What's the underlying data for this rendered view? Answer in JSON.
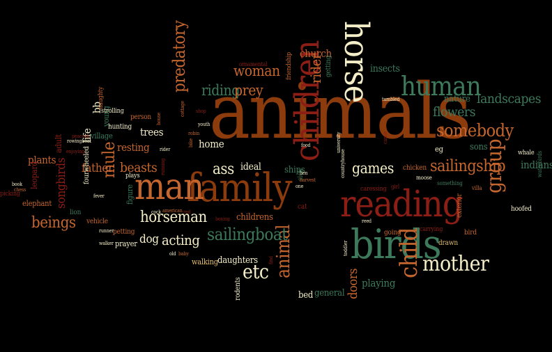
{
  "palette": {
    "background": "#000000",
    "brown": "#8c3b0c",
    "orange": "#c5662e",
    "green": "#3d7a5c",
    "red": "#8d1e16",
    "cream": "#f4eec8",
    "yellow": "#e0bd6b"
  },
  "words": [
    {
      "text": "animals",
      "color": "brown"
    },
    {
      "text": "family",
      "color": "brown"
    },
    {
      "text": "man",
      "color": "orange"
    },
    {
      "text": "reading",
      "color": "red"
    },
    {
      "text": "birds",
      "color": "green"
    },
    {
      "text": "horse",
      "color": "cream"
    },
    {
      "text": "children",
      "color": "red"
    },
    {
      "text": "human",
      "color": "green"
    },
    {
      "text": "child",
      "color": "orange"
    },
    {
      "text": "mother",
      "color": "cream"
    },
    {
      "text": "sailingship",
      "color": "orange"
    },
    {
      "text": "somebody",
      "color": "orange"
    },
    {
      "text": "group",
      "color": "orange"
    },
    {
      "text": "animal",
      "color": "orange"
    },
    {
      "text": "sailingboat",
      "color": "green"
    },
    {
      "text": "horseman",
      "color": "cream"
    },
    {
      "text": "predatory",
      "color": "orange"
    },
    {
      "text": "mule",
      "color": "orange"
    },
    {
      "text": "etc",
      "color": "cream"
    },
    {
      "text": "games",
      "color": "cream"
    },
    {
      "text": "woman",
      "color": "orange"
    },
    {
      "text": "riding",
      "color": "green"
    },
    {
      "text": "prey",
      "color": "orange"
    },
    {
      "text": "rider",
      "color": "orange"
    },
    {
      "text": "beings",
      "color": "orange"
    },
    {
      "text": "beasts",
      "color": "orange"
    },
    {
      "text": "acting",
      "color": "cream"
    },
    {
      "text": "ass",
      "color": "cream"
    },
    {
      "text": "landscapes",
      "color": "green"
    },
    {
      "text": "flowers",
      "color": "green"
    },
    {
      "text": "insects",
      "color": "green"
    },
    {
      "text": "church",
      "color": "orange"
    },
    {
      "text": "songbirds",
      "color": "red"
    },
    {
      "text": "father",
      "color": "orange"
    },
    {
      "text": "dog",
      "color": "cream"
    },
    {
      "text": "resting",
      "color": "orange"
    },
    {
      "text": "trees",
      "color": "cream"
    },
    {
      "text": "indians",
      "color": "green"
    },
    {
      "text": "doors",
      "color": "orange"
    },
    {
      "text": "playing",
      "color": "green"
    },
    {
      "text": "plants",
      "color": "orange"
    },
    {
      "text": "home",
      "color": "cream"
    },
    {
      "text": "bb",
      "color": "cream"
    },
    {
      "text": "life",
      "color": "cream"
    },
    {
      "text": "sons",
      "color": "green"
    },
    {
      "text": "ideal",
      "color": "cream"
    },
    {
      "text": "ships",
      "color": "green"
    },
    {
      "text": "childrens",
      "color": "orange"
    },
    {
      "text": "daughters",
      "color": "cream"
    },
    {
      "text": "nature",
      "color": "green"
    },
    {
      "text": "general",
      "color": "green"
    },
    {
      "text": "bed",
      "color": "cream"
    },
    {
      "text": "walking",
      "color": "yellow"
    },
    {
      "text": "figure",
      "color": "green"
    },
    {
      "text": "prayer",
      "color": "cream"
    },
    {
      "text": "adult",
      "color": "red"
    },
    {
      "text": "village",
      "color": "green"
    },
    {
      "text": "leopard",
      "color": "red"
    },
    {
      "text": "elephant",
      "color": "orange"
    },
    {
      "text": "picking",
      "color": "red"
    },
    {
      "text": "vehicle",
      "color": "orange"
    },
    {
      "text": "lion",
      "color": "green"
    },
    {
      "text": "young",
      "color": "green"
    },
    {
      "text": "sick",
      "color": "green"
    },
    {
      "text": "getting",
      "color": "green"
    },
    {
      "text": "going",
      "color": "orange"
    },
    {
      "text": "exterior",
      "color": "orange"
    },
    {
      "text": "hoofed",
      "color": "cream"
    },
    {
      "text": "chicken",
      "color": "orange"
    },
    {
      "text": "whale",
      "color": "cream"
    },
    {
      "text": "bird",
      "color": "orange"
    },
    {
      "text": "drawn",
      "color": "yellow"
    },
    {
      "text": "cat",
      "color": "red"
    },
    {
      "text": "eg",
      "color": "cream"
    },
    {
      "text": "rodents",
      "color": "cream"
    },
    {
      "text": "person",
      "color": "orange"
    },
    {
      "text": "hunting",
      "color": "cream"
    },
    {
      "text": "naughty",
      "color": "orange"
    },
    {
      "text": "strolling",
      "color": "cream"
    },
    {
      "text": "plays",
      "color": "cream"
    },
    {
      "text": "fourwheeled",
      "color": "cream"
    },
    {
      "text": "petting",
      "color": "orange"
    },
    {
      "text": "friendship",
      "color": "orange"
    },
    {
      "text": "ornamental",
      "color": "red"
    },
    {
      "text": "caressing",
      "color": "red"
    },
    {
      "text": "carrying",
      "color": "red"
    },
    {
      "text": "something",
      "color": "green"
    },
    {
      "text": "villa",
      "color": "orange"
    },
    {
      "text": "waterbirds",
      "color": "green"
    },
    {
      "text": "moose",
      "color": "cream"
    },
    {
      "text": "girl",
      "color": "red"
    },
    {
      "text": "toddler",
      "color": "cream"
    },
    {
      "text": "reed",
      "color": "cream"
    },
    {
      "text": "countryhouse",
      "color": "cream"
    },
    {
      "text": "university",
      "color": "cream"
    },
    {
      "text": "food",
      "color": "cream"
    },
    {
      "text": "harvest",
      "color": "orange"
    },
    {
      "text": "one",
      "color": "cream"
    },
    {
      "text": "hen",
      "color": "cream"
    },
    {
      "text": "canoe",
      "color": "red"
    },
    {
      "text": "tumbled",
      "color": "cream"
    },
    {
      "text": "bike",
      "color": "orange"
    },
    {
      "text": "robin",
      "color": "orange"
    },
    {
      "text": "cottage",
      "color": "orange"
    },
    {
      "text": "shop",
      "color": "red"
    },
    {
      "text": "youth",
      "color": "cream"
    },
    {
      "text": "rider",
      "color": "cream"
    },
    {
      "text": "house",
      "color": "orange"
    },
    {
      "text": "running",
      "color": "red"
    },
    {
      "text": "boxing",
      "color": "red"
    },
    {
      "text": "cock",
      "color": "cream"
    },
    {
      "text": "american",
      "color": "orange"
    },
    {
      "text": "red",
      "color": "red"
    },
    {
      "text": "old",
      "color": "cream"
    },
    {
      "text": "baby",
      "color": "orange"
    },
    {
      "text": "find",
      "color": "red"
    },
    {
      "text": "peacock",
      "color": "red"
    },
    {
      "text": "rowingboat",
      "color": "cream"
    },
    {
      "text": "enjoying",
      "color": "red"
    },
    {
      "text": "runner",
      "color": "cream"
    },
    {
      "text": "walker",
      "color": "cream"
    },
    {
      "text": "fever",
      "color": "cream"
    },
    {
      "text": "book",
      "color": "cream"
    },
    {
      "text": "chess",
      "color": "orange"
    }
  ]
}
